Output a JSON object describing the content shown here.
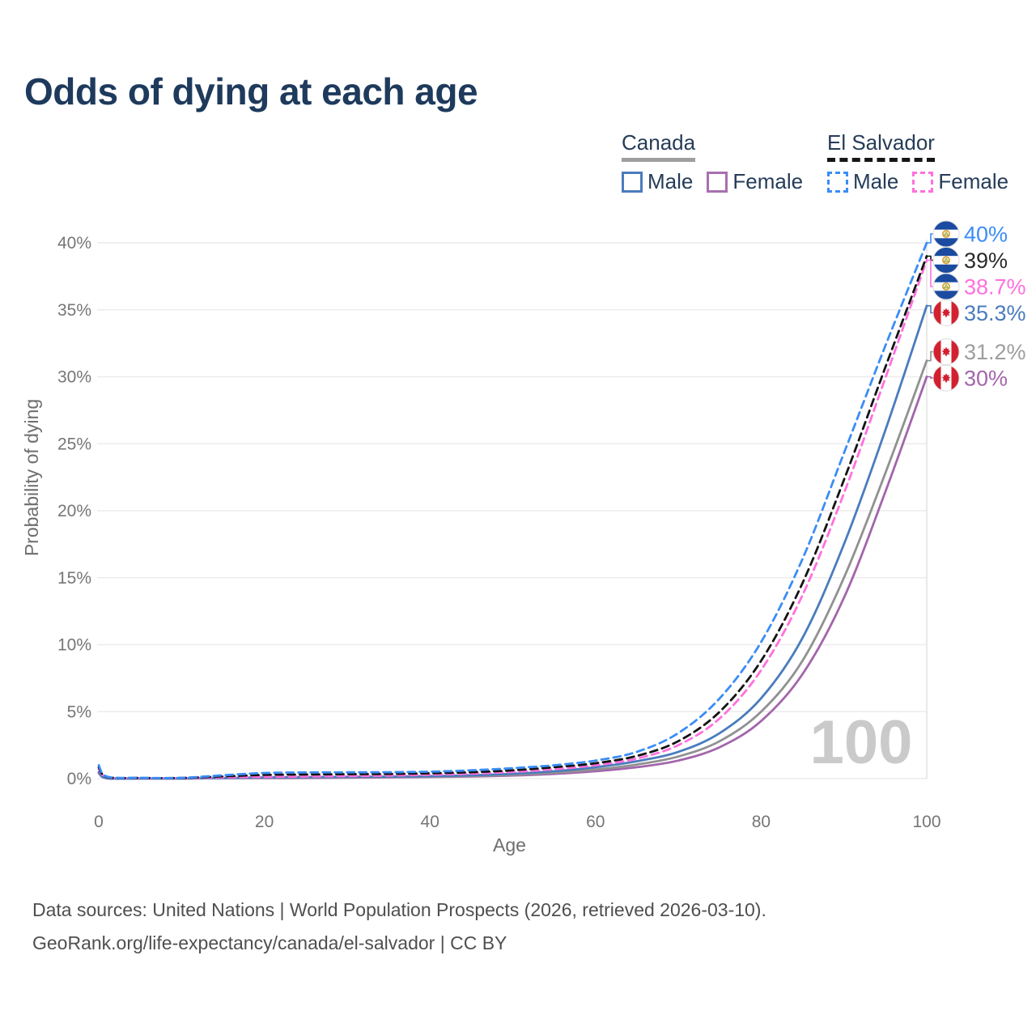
{
  "title": "Odds of dying at each age",
  "watermark": "100",
  "legend": {
    "groups": [
      {
        "name": "Canada",
        "line_style": "solid",
        "underline_color": "#9e9e9e",
        "items": [
          {
            "label": "Male",
            "color": "#4a7cbd"
          },
          {
            "label": "Female",
            "color": "#a76fb0"
          }
        ]
      },
      {
        "name": "El Salvador",
        "line_style": "dashed",
        "underline_color": "#161616",
        "items": [
          {
            "label": "Male",
            "color": "#3b8df5"
          },
          {
            "label": "Female",
            "color": "#ff70dd"
          }
        ]
      }
    ]
  },
  "footer": {
    "line1": "Data sources: United Nations | World Population Prospects (2026, retrieved 2026-03-10).",
    "line2": "GeoRank.org/life-expectancy/canada/el-salvador | CC BY"
  },
  "chart_data": {
    "type": "line",
    "title": "Odds of dying at each age",
    "xlabel": "Age",
    "ylabel": "Probability of dying",
    "xlim": [
      0,
      100
    ],
    "ylim_percent": [
      0,
      40
    ],
    "grid": "horizontal",
    "x_ticks": [
      {
        "v": 0,
        "label": "0"
      },
      {
        "v": 20,
        "label": "20"
      },
      {
        "v": 40,
        "label": "40"
      },
      {
        "v": 60,
        "label": "60"
      },
      {
        "v": 80,
        "label": "80"
      },
      {
        "v": 100,
        "label": "100"
      }
    ],
    "y_ticks": [
      {
        "v": 0,
        "label": "0%"
      },
      {
        "v": 5,
        "label": "5%"
      },
      {
        "v": 10,
        "label": "10%"
      },
      {
        "v": 15,
        "label": "15%"
      },
      {
        "v": 20,
        "label": "20%"
      },
      {
        "v": 25,
        "label": "25%"
      },
      {
        "v": 30,
        "label": "30%"
      },
      {
        "v": 35,
        "label": "35%"
      },
      {
        "v": 40,
        "label": "40%"
      }
    ],
    "reference_age": 100,
    "x": [
      0,
      1,
      5,
      10,
      15,
      20,
      25,
      30,
      35,
      40,
      45,
      50,
      55,
      60,
      65,
      70,
      75,
      80,
      85,
      90,
      95,
      100
    ],
    "series": [
      {
        "name": "El Salvador Male",
        "country": "El Salvador",
        "sex": "male",
        "dashed": true,
        "color": "#3b8df5",
        "label_color": "#3b8df5",
        "flag": "sv",
        "end_label": "40%",
        "values_percent": [
          1.0,
          0.15,
          0.06,
          0.06,
          0.25,
          0.42,
          0.46,
          0.47,
          0.48,
          0.52,
          0.62,
          0.78,
          1.0,
          1.35,
          2.0,
          3.4,
          6.0,
          10.2,
          16.4,
          24.3,
          32.3,
          40.0
        ]
      },
      {
        "name": "El Salvador Total",
        "country": "El Salvador",
        "sex": "both",
        "dashed": true,
        "color": "#141414",
        "label_color": "#2b2b2b",
        "flag": "sv",
        "end_label": "39%",
        "values_percent": [
          0.85,
          0.12,
          0.05,
          0.05,
          0.17,
          0.28,
          0.31,
          0.33,
          0.35,
          0.4,
          0.48,
          0.62,
          0.85,
          1.15,
          1.7,
          2.8,
          5.0,
          8.8,
          14.6,
          22.3,
          30.7,
          39.0
        ]
      },
      {
        "name": "El Salvador Female",
        "country": "El Salvador",
        "sex": "female",
        "dashed": true,
        "color": "#ff70dd",
        "label_color": "#ff70dd",
        "flag": "sv",
        "end_label": "38.7%",
        "values_percent": [
          0.72,
          0.1,
          0.04,
          0.04,
          0.09,
          0.13,
          0.16,
          0.19,
          0.23,
          0.29,
          0.37,
          0.5,
          0.7,
          1.0,
          1.5,
          2.5,
          4.5,
          8.1,
          13.7,
          21.3,
          29.9,
          38.7
        ]
      },
      {
        "name": "Canada Male",
        "country": "Canada",
        "sex": "male",
        "dashed": false,
        "color": "#4a7cbd",
        "label_color": "#4a7cbd",
        "flag": "ca",
        "end_label": "35.3%",
        "values_percent": [
          0.48,
          0.03,
          0.01,
          0.01,
          0.05,
          0.09,
          0.11,
          0.13,
          0.15,
          0.18,
          0.25,
          0.36,
          0.55,
          0.85,
          1.3,
          2.0,
          3.4,
          6.0,
          10.5,
          17.5,
          26.0,
          35.3
        ]
      },
      {
        "name": "Canada Total",
        "country": "Canada",
        "sex": "both",
        "dashed": false,
        "color": "#919191",
        "label_color": "#9e9e9e",
        "flag": "ca",
        "end_label": "31.2%",
        "values_percent": [
          0.44,
          0.03,
          0.01,
          0.01,
          0.04,
          0.07,
          0.08,
          0.1,
          0.12,
          0.15,
          0.2,
          0.29,
          0.44,
          0.68,
          1.05,
          1.65,
          2.8,
          5.0,
          8.8,
          15.0,
          22.8,
          31.2
        ]
      },
      {
        "name": "Canada Female",
        "country": "Canada",
        "sex": "female",
        "dashed": false,
        "color": "#a365ab",
        "label_color": "#a365ab",
        "flag": "ca",
        "end_label": "30%",
        "values_percent": [
          0.4,
          0.02,
          0.01,
          0.01,
          0.03,
          0.04,
          0.05,
          0.07,
          0.09,
          0.12,
          0.16,
          0.23,
          0.35,
          0.55,
          0.85,
          1.35,
          2.35,
          4.3,
          7.8,
          13.5,
          21.4,
          30.0
        ]
      }
    ]
  }
}
